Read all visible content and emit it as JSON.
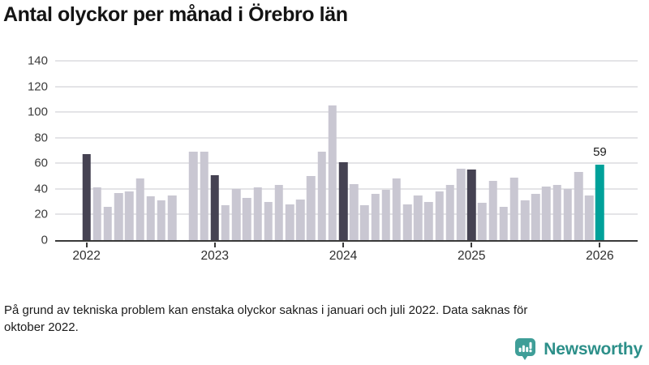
{
  "title": "Antal olyckor per månad i Örebro län",
  "footnote": {
    "line1": "På grund av tekniska problem kan enstaka olyckor saknas i januari och juli 2022. Data saknas för",
    "line2": "oktober 2022."
  },
  "brand": {
    "name": "Newsworthy",
    "icon": "newsworthy-bubble-chart-icon"
  },
  "colors": {
    "bar_light": "#c9c7d2",
    "bar_dark": "#454252",
    "bar_teal": "#00a19a",
    "gridline": "#e4e4e7",
    "axis": "#3a3a3a",
    "brand_teal": "#2c8f89"
  },
  "chart_data": {
    "type": "bar",
    "title": "Antal olyckor per månad i Örebro län",
    "xlabel": "",
    "ylabel": "",
    "ylim": [
      0,
      140
    ],
    "yticks": [
      0,
      20,
      40,
      60,
      80,
      100,
      120,
      140
    ],
    "grid": true,
    "legend": "none",
    "note": "October 2022 shown as gap (data missing)",
    "xticks": [
      {
        "label": "2022",
        "slot": 0
      },
      {
        "label": "2023",
        "slot": 12
      },
      {
        "label": "2024",
        "slot": 24
      },
      {
        "label": "2025",
        "slot": 36
      },
      {
        "label": "2026",
        "slot": 48
      }
    ],
    "bars": [
      {
        "month": "2022-01",
        "value": 67,
        "style": "bar_dark"
      },
      {
        "month": "2022-02",
        "value": 41,
        "style": "bar_light"
      },
      {
        "month": "2022-03",
        "value": 26,
        "style": "bar_light"
      },
      {
        "month": "2022-04",
        "value": 37,
        "style": "bar_light"
      },
      {
        "month": "2022-05",
        "value": 38,
        "style": "bar_light"
      },
      {
        "month": "2022-06",
        "value": 48,
        "style": "bar_light"
      },
      {
        "month": "2022-07",
        "value": 34,
        "style": "bar_light"
      },
      {
        "month": "2022-08",
        "value": 31,
        "style": "bar_light"
      },
      {
        "month": "2022-09",
        "value": 35,
        "style": "bar_light"
      },
      {
        "month": "2022-10",
        "value": null,
        "style": "bar_light"
      },
      {
        "month": "2022-11",
        "value": 69,
        "style": "bar_light"
      },
      {
        "month": "2022-12",
        "value": 69,
        "style": "bar_light"
      },
      {
        "month": "2023-01",
        "value": 51,
        "style": "bar_dark"
      },
      {
        "month": "2023-02",
        "value": 27,
        "style": "bar_light"
      },
      {
        "month": "2023-03",
        "value": 40,
        "style": "bar_light"
      },
      {
        "month": "2023-04",
        "value": 33,
        "style": "bar_light"
      },
      {
        "month": "2023-05",
        "value": 41,
        "style": "bar_light"
      },
      {
        "month": "2023-06",
        "value": 30,
        "style": "bar_light"
      },
      {
        "month": "2023-07",
        "value": 43,
        "style": "bar_light"
      },
      {
        "month": "2023-08",
        "value": 28,
        "style": "bar_light"
      },
      {
        "month": "2023-09",
        "value": 32,
        "style": "bar_light"
      },
      {
        "month": "2023-10",
        "value": 50,
        "style": "bar_light"
      },
      {
        "month": "2023-11",
        "value": 69,
        "style": "bar_light"
      },
      {
        "month": "2023-12",
        "value": 105,
        "style": "bar_light"
      },
      {
        "month": "2024-01",
        "value": 61,
        "style": "bar_dark"
      },
      {
        "month": "2024-02",
        "value": 44,
        "style": "bar_light"
      },
      {
        "month": "2024-03",
        "value": 27,
        "style": "bar_light"
      },
      {
        "month": "2024-04",
        "value": 36,
        "style": "bar_light"
      },
      {
        "month": "2024-05",
        "value": 39,
        "style": "bar_light"
      },
      {
        "month": "2024-06",
        "value": 48,
        "style": "bar_light"
      },
      {
        "month": "2024-07",
        "value": 28,
        "style": "bar_light"
      },
      {
        "month": "2024-08",
        "value": 35,
        "style": "bar_light"
      },
      {
        "month": "2024-09",
        "value": 30,
        "style": "bar_light"
      },
      {
        "month": "2024-10",
        "value": 38,
        "style": "bar_light"
      },
      {
        "month": "2024-11",
        "value": 43,
        "style": "bar_light"
      },
      {
        "month": "2024-12",
        "value": 56,
        "style": "bar_light"
      },
      {
        "month": "2025-01",
        "value": 55,
        "style": "bar_dark"
      },
      {
        "month": "2025-02",
        "value": 29,
        "style": "bar_light"
      },
      {
        "month": "2025-03",
        "value": 46,
        "style": "bar_light"
      },
      {
        "month": "2025-04",
        "value": 26,
        "style": "bar_light"
      },
      {
        "month": "2025-05",
        "value": 49,
        "style": "bar_light"
      },
      {
        "month": "2025-06",
        "value": 31,
        "style": "bar_light"
      },
      {
        "month": "2025-07",
        "value": 36,
        "style": "bar_light"
      },
      {
        "month": "2025-08",
        "value": 42,
        "style": "bar_light"
      },
      {
        "month": "2025-09",
        "value": 43,
        "style": "bar_light"
      },
      {
        "month": "2025-10",
        "value": 40,
        "style": "bar_light"
      },
      {
        "month": "2025-11",
        "value": 53,
        "style": "bar_light"
      },
      {
        "month": "2025-12",
        "value": 35,
        "style": "bar_light"
      },
      {
        "month": "2026-01",
        "value": 59,
        "style": "bar_teal",
        "label": "59"
      }
    ]
  }
}
